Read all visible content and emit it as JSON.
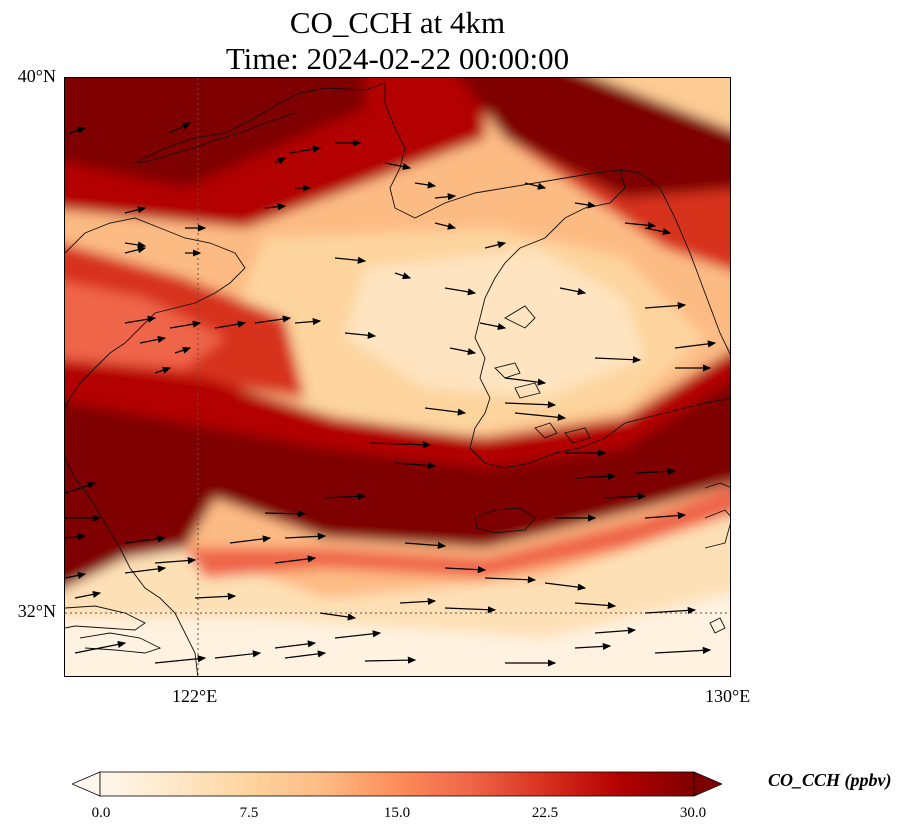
{
  "title": {
    "line1": "CO_CCH at 4km",
    "line2": "Time: 2024-02-22 00:00:00"
  },
  "map": {
    "lat_range": [
      30.8,
      40.0
    ],
    "lon_range": [
      120.0,
      130.0
    ],
    "lat_ticks": [
      {
        "value": 40,
        "label": "40°N"
      },
      {
        "value": 32,
        "label": "32°N"
      }
    ],
    "lon_ticks": [
      {
        "value": 122,
        "label": "122°E"
      },
      {
        "value": 130,
        "label": "130°E"
      }
    ],
    "gridline_style": "dotted",
    "field": "CO_CCH",
    "wind_vectors": "black arrows, mostly eastward"
  },
  "colorbar": {
    "label": "CO_CCH (ppbv)",
    "colormap": "OrRd",
    "ticks": [
      "0.0",
      "7.5",
      "15.0",
      "22.5",
      "30.0"
    ],
    "range": [
      0,
      30
    ],
    "extend": "both",
    "colors": [
      "#fff7ec",
      "#fee8c8",
      "#fdd49e",
      "#fdbb84",
      "#fc8d59",
      "#ef6548",
      "#d7301f",
      "#b30000",
      "#7f0000"
    ]
  }
}
